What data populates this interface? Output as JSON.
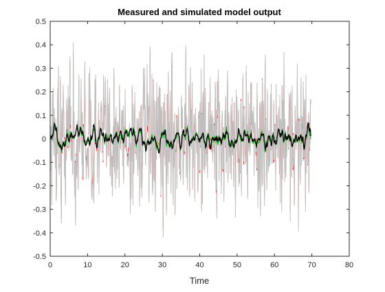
{
  "chart_data": {
    "type": "line",
    "title": "Measured and simulated model output",
    "xlabel": "Time",
    "ylabel": "",
    "xlim": [
      0,
      80
    ],
    "ylim": [
      -0.5,
      0.5
    ],
    "xticks": [
      "0",
      "10",
      "20",
      "30",
      "40",
      "50",
      "60",
      "70",
      "80"
    ],
    "yticks": [
      "-0.5",
      "-0.4",
      "-0.3",
      "-0.2",
      "-0.1",
      "0",
      "0.1",
      "0.2",
      "0.3",
      "0.4",
      "0.5"
    ],
    "grid": false,
    "legend": "none",
    "time_range": [
      0,
      69.7
    ],
    "sample_count": 700,
    "colors": {
      "axes": "#262626",
      "measured": "#c0c0c0",
      "simulated_red": "#ff0000",
      "simulated_green": "#00b000",
      "simulated_black": "#000000"
    },
    "series": [
      {
        "color": "#c0c0c0",
        "envelope": [
          -0.42,
          0.4
        ],
        "typical_amplitude": 0.14,
        "note_values": [
          [
            0.3,
            0.05
          ],
          [
            2.2,
            0.31
          ],
          [
            3.0,
            -0.36
          ],
          [
            5.3,
            0.35
          ],
          [
            6.2,
            0.41
          ],
          [
            6.8,
            -0.37
          ],
          [
            9.3,
            0.33
          ],
          [
            11.2,
            -0.26
          ],
          [
            14.3,
            0.27
          ],
          [
            17.1,
            0.3
          ],
          [
            21.4,
            -0.32
          ],
          [
            25.2,
            0.3
          ],
          [
            28.1,
            -0.31
          ],
          [
            30.2,
            -0.42
          ],
          [
            32.5,
            0.35
          ],
          [
            36.3,
            0.4
          ],
          [
            41.2,
            0.36
          ],
          [
            44.6,
            -0.34
          ],
          [
            47.5,
            0.29
          ],
          [
            52.4,
            0.31
          ],
          [
            56.2,
            -0.33
          ],
          [
            62.5,
            0.37
          ],
          [
            64.2,
            -0.35
          ],
          [
            66.1,
            0.32
          ],
          [
            68.3,
            -0.31
          ],
          [
            69.7,
            0.17
          ]
        ]
      },
      {
        "color": "#ff0000",
        "typical_amplitude": 0.1
      },
      {
        "color": "#00b000",
        "typical_amplitude": 0.03
      },
      {
        "color": "#000000",
        "typical_amplitude": 0.035,
        "envelope": [
          -0.12,
          0.09
        ]
      }
    ]
  }
}
